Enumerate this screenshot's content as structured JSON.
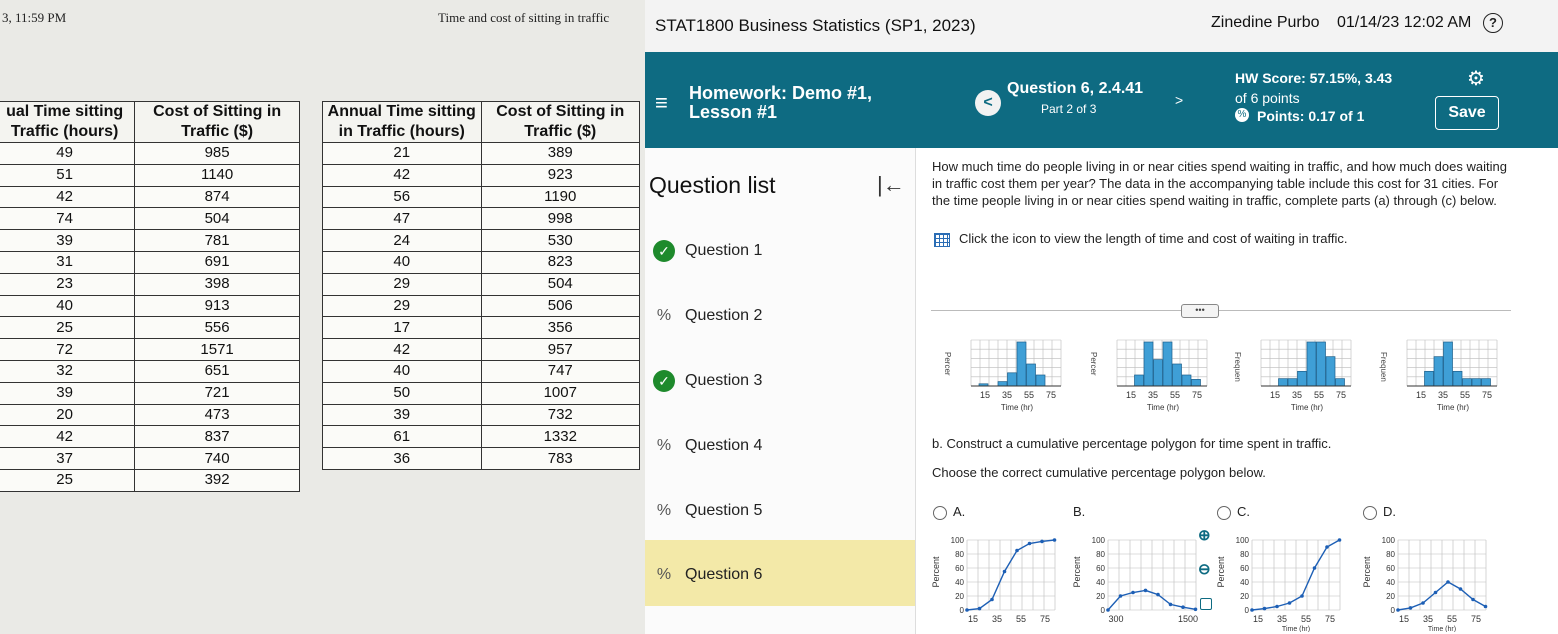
{
  "printout": {
    "clipped_time": "3, 11:59 PM",
    "doc_title": "Time and cost of sitting in traffic",
    "table1": {
      "headers": [
        "ual Time sitting Traffic (hours)",
        "Cost of Sitting in Traffic ($)"
      ],
      "header_lines": [
        [
          "ual Time sitting",
          "Traffic (hours)"
        ],
        [
          "Cost of Sitting in",
          "Traffic ($)"
        ]
      ],
      "rows": [
        [
          "49",
          "985"
        ],
        [
          "51",
          "1140"
        ],
        [
          "42",
          "874"
        ],
        [
          "74",
          "504"
        ],
        [
          "39",
          "781"
        ],
        [
          "31",
          "691"
        ],
        [
          "23",
          "398"
        ],
        [
          "40",
          "913"
        ],
        [
          "25",
          "556"
        ],
        [
          "72",
          "1571"
        ],
        [
          "32",
          "651"
        ],
        [
          "39",
          "721"
        ],
        [
          "20",
          "473"
        ],
        [
          "42",
          "837"
        ],
        [
          "37",
          "740"
        ],
        [
          "25",
          "392"
        ]
      ]
    },
    "table2": {
      "header_lines": [
        [
          "Annual Time sitting",
          "in Traffic (hours)"
        ],
        [
          "Cost of Sitting in",
          "Traffic ($)"
        ]
      ],
      "rows": [
        [
          "21",
          "389"
        ],
        [
          "42",
          "923"
        ],
        [
          "56",
          "1190"
        ],
        [
          "47",
          "998"
        ],
        [
          "24",
          "530"
        ],
        [
          "40",
          "823"
        ],
        [
          "29",
          "504"
        ],
        [
          "29",
          "506"
        ],
        [
          "17",
          "356"
        ],
        [
          "42",
          "957"
        ],
        [
          "40",
          "747"
        ],
        [
          "50",
          "1007"
        ],
        [
          "39",
          "732"
        ],
        [
          "61",
          "1332"
        ],
        [
          "36",
          "783"
        ]
      ]
    }
  },
  "app": {
    "course_title": "STAT1800 Business Statistics (SP1, 2023)",
    "user_name": "Zinedine Purbo",
    "datetime": "01/14/23 12:02 AM",
    "help_label": "?",
    "homework_title": "Homework: Demo #1, Lesson #1",
    "menu_glyph": "≡",
    "question_list_title": "Question list",
    "collapse_glyph": "|←",
    "questions": [
      {
        "label": "Question 1",
        "status": "complete"
      },
      {
        "label": "Question 2",
        "status": "partial"
      },
      {
        "label": "Question 3",
        "status": "complete"
      },
      {
        "label": "Question 4",
        "status": "partial"
      },
      {
        "label": "Question 5",
        "status": "partial"
      },
      {
        "label": "Question 6",
        "status": "partial"
      }
    ],
    "nav": {
      "prev_glyph": "<",
      "title": "Question 6, 2.4.41",
      "part": "Part 2 of 3",
      "next_glyph": ">"
    },
    "score": {
      "hw_score": "HW Score: 57.15%, 3.43",
      "total": "of 6 points",
      "points": "Points: 0.17 of 1"
    },
    "save_label": "Save",
    "question_text": "How much time do people living in or near cities spend waiting in traffic, and how much does waiting in traffic cost them per year? The data in the accompanying table include this cost for 31 cities. For the time people living in or near cities spend waiting in traffic, complete parts (a) through (c) below.",
    "table_link_text": "Click the icon to view the length of time and cost of waiting in traffic.",
    "more_label": "•••",
    "part_b": "b. Construct a cumulative percentage polygon for time spent in traffic.",
    "choose": "Choose the correct cumulative percentage polygon below.",
    "options": [
      "A.",
      "B.",
      "C.",
      "D."
    ],
    "hist_axis_labels": {
      "percent": "Percer",
      "frequency": "Frequen",
      "time": "Time (hr)",
      "ticks": [
        "15",
        "35",
        "55",
        "75"
      ]
    },
    "poly_axis_labels": {
      "percent": "Percent",
      "ticks_y": [
        "100",
        "80",
        "60",
        "40",
        "20",
        "0"
      ],
      "ticks_x": [
        "15",
        "35",
        "55",
        "75"
      ],
      "ticks_x_b": [
        "300",
        "1500"
      ],
      "time": "Time (hr)"
    },
    "accent_color": "#0e6b82",
    "highlight_color": "#f3e9a8"
  }
}
